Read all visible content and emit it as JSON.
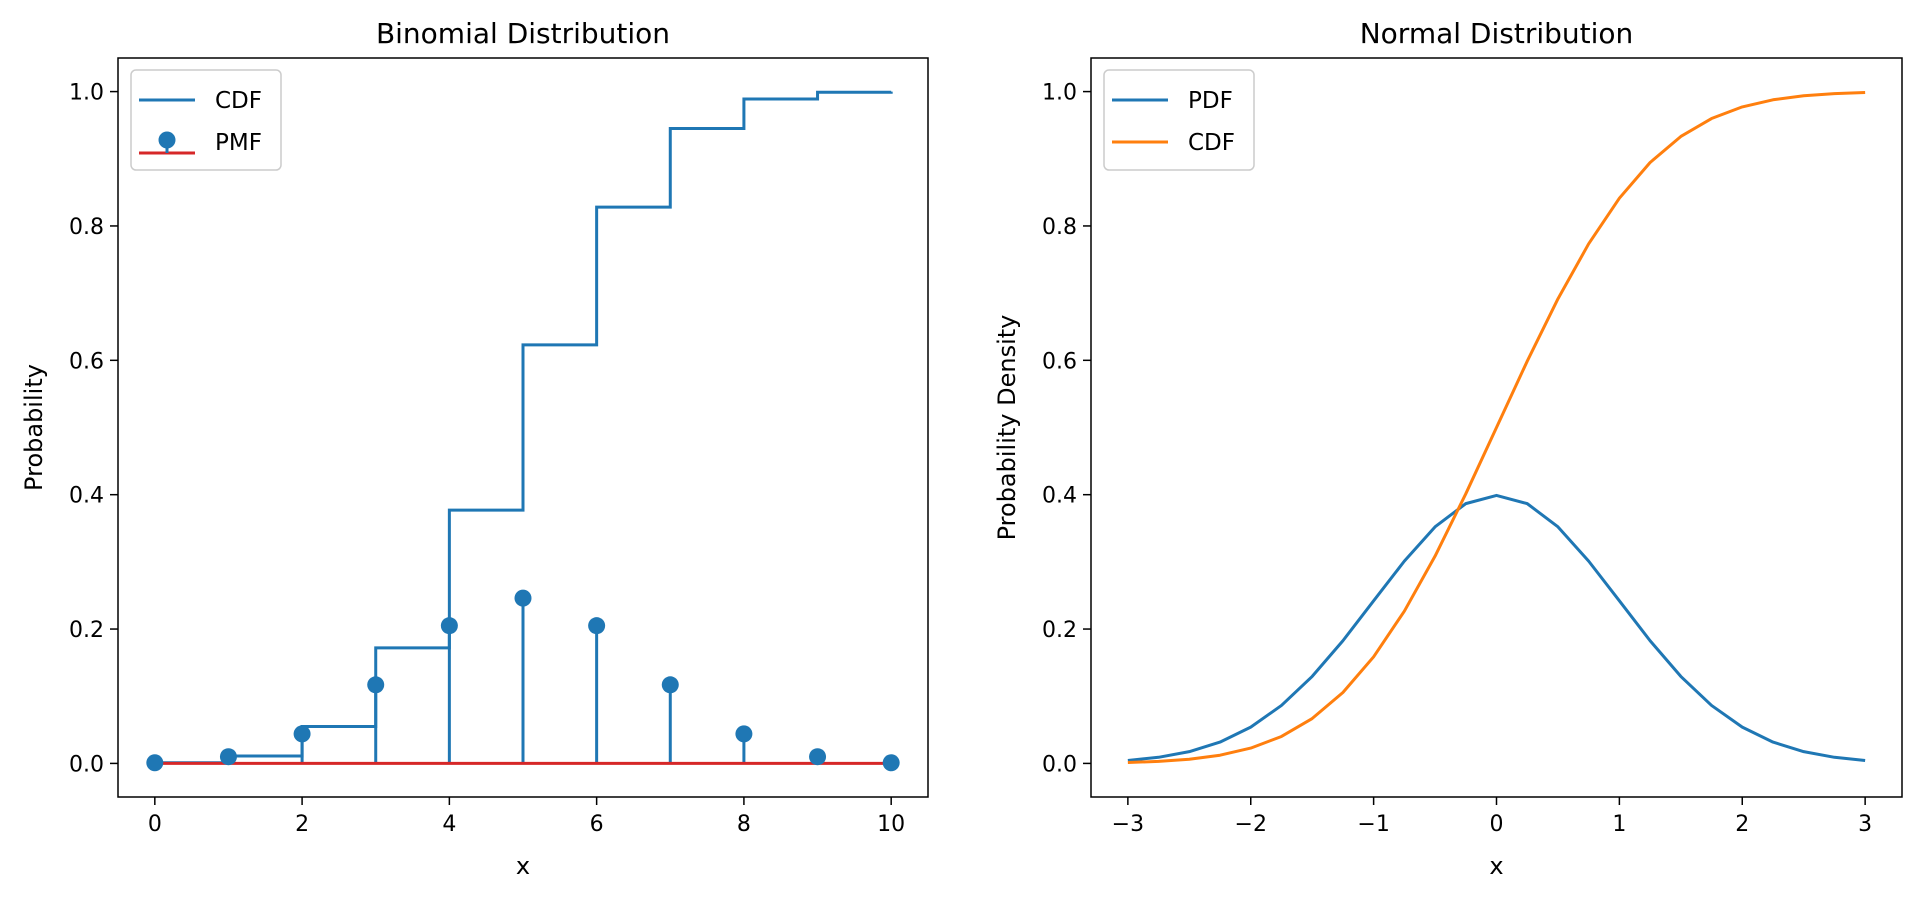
{
  "chart_data": [
    {
      "type": "line",
      "title": "Binomial Distribution",
      "xlabel": "x",
      "ylabel": "Probability",
      "xlim": [
        -0.5,
        10.5
      ],
      "ylim": [
        -0.05,
        1.05
      ],
      "xticks": [
        0,
        2,
        4,
        6,
        8,
        10
      ],
      "yticks": [
        0.0,
        0.2,
        0.4,
        0.6,
        0.8,
        1.0
      ],
      "xtick_labels": [
        "0",
        "2",
        "4",
        "6",
        "8",
        "10"
      ],
      "ytick_labels": [
        "0.0",
        "0.2",
        "0.4",
        "0.6",
        "0.8",
        "1.0"
      ],
      "grid": false,
      "legend": "upper-left",
      "series": [
        {
          "name": "CDF",
          "kind": "step",
          "color": "#1f77b4",
          "x": [
            0,
            1,
            2,
            3,
            4,
            5,
            6,
            7,
            8,
            9,
            10
          ],
          "y": [
            0.001,
            0.011,
            0.055,
            0.172,
            0.377,
            0.623,
            0.828,
            0.945,
            0.989,
            0.999,
            1.0
          ]
        },
        {
          "name": "PMF",
          "kind": "stem",
          "color": "#1f77b4",
          "baseline_color": "#d62728",
          "x": [
            0,
            1,
            2,
            3,
            4,
            5,
            6,
            7,
            8,
            9,
            10
          ],
          "y": [
            0.001,
            0.01,
            0.044,
            0.117,
            0.205,
            0.246,
            0.205,
            0.117,
            0.044,
            0.01,
            0.001
          ]
        }
      ]
    },
    {
      "type": "line",
      "title": "Normal Distribution",
      "xlabel": "x",
      "ylabel": "Probability Density",
      "xlim": [
        -3.3,
        3.3
      ],
      "ylim": [
        -0.05,
        1.05
      ],
      "xticks": [
        -3,
        -2,
        -1,
        0,
        1,
        2,
        3
      ],
      "yticks": [
        0.0,
        0.2,
        0.4,
        0.6,
        0.8,
        1.0
      ],
      "xtick_labels": [
        "−3",
        "−2",
        "−1",
        "0",
        "1",
        "2",
        "3"
      ],
      "ytick_labels": [
        "0.0",
        "0.2",
        "0.4",
        "0.6",
        "0.8",
        "1.0"
      ],
      "grid": false,
      "legend": "upper-left",
      "series": [
        {
          "name": "PDF",
          "color": "#1f77b4",
          "x": [
            -3.0,
            -2.75,
            -2.5,
            -2.25,
            -2.0,
            -1.75,
            -1.5,
            -1.25,
            -1.0,
            -0.75,
            -0.5,
            -0.25,
            0.0,
            0.25,
            0.5,
            0.75,
            1.0,
            1.25,
            1.5,
            1.75,
            2.0,
            2.25,
            2.5,
            2.75,
            3.0
          ],
          "y": [
            0.0044,
            0.0091,
            0.0175,
            0.0317,
            0.054,
            0.0863,
            0.1295,
            0.1826,
            0.242,
            0.3011,
            0.3521,
            0.3867,
            0.3989,
            0.3867,
            0.3521,
            0.3011,
            0.242,
            0.1826,
            0.1295,
            0.0863,
            0.054,
            0.0317,
            0.0175,
            0.0091,
            0.0044
          ]
        },
        {
          "name": "CDF",
          "color": "#ff7f0e",
          "x": [
            -3.0,
            -2.75,
            -2.5,
            -2.25,
            -2.0,
            -1.75,
            -1.5,
            -1.25,
            -1.0,
            -0.75,
            -0.5,
            -0.25,
            0.0,
            0.25,
            0.5,
            0.75,
            1.0,
            1.25,
            1.5,
            1.75,
            2.0,
            2.25,
            2.5,
            2.75,
            3.0
          ],
          "y": [
            0.0013,
            0.003,
            0.0062,
            0.0122,
            0.0228,
            0.0401,
            0.0668,
            0.1056,
            0.1587,
            0.2266,
            0.3085,
            0.4013,
            0.5,
            0.5987,
            0.6915,
            0.7734,
            0.8413,
            0.8944,
            0.9332,
            0.9599,
            0.9772,
            0.9878,
            0.9938,
            0.997,
            0.9987
          ]
        }
      ]
    }
  ]
}
